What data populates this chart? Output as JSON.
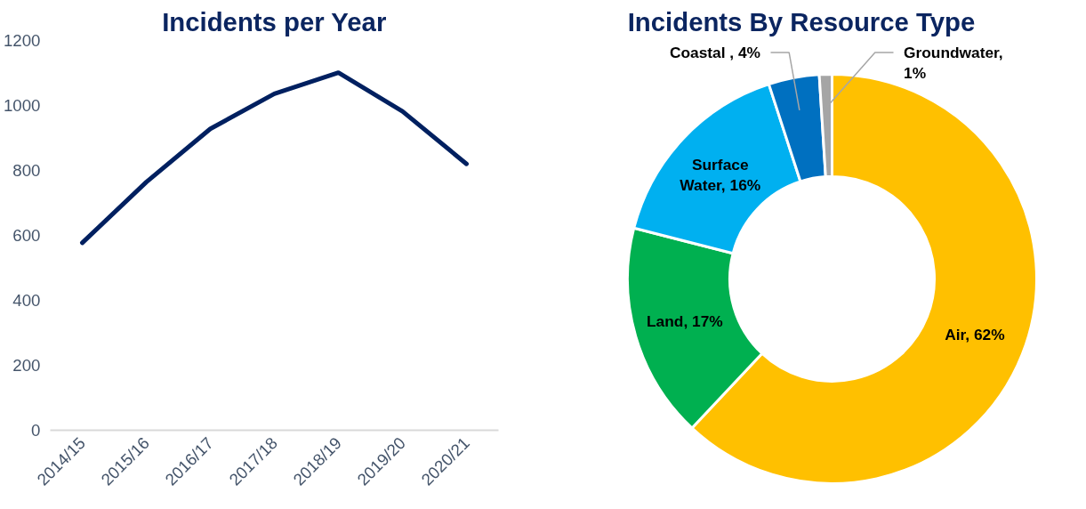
{
  "chart_data": [
    {
      "type": "line",
      "title": "Incidents per Year",
      "categories": [
        "2014/15",
        "2015/16",
        "2016/17",
        "2017/18",
        "2018/19",
        "2019/20",
        "2020/21"
      ],
      "series": [
        {
          "color": "#002060",
          "values": [
            577,
            764,
            928,
            1036,
            1101,
            982,
            820
          ]
        }
      ],
      "ylim": [
        0,
        1200
      ],
      "yticks": [
        0,
        200,
        400,
        600,
        800,
        1000,
        1200
      ],
      "grid": false,
      "marker": "none",
      "line_style": "solid"
    },
    {
      "type": "donut",
      "title": "Incidents By Resource Type",
      "categories": [
        "Air",
        "Land",
        "Surface Water",
        "Coastal ",
        "Groundwater"
      ],
      "values": [
        62,
        17,
        16,
        4,
        1
      ],
      "colors": [
        "#ffc000",
        "#00b050",
        "#00b0f0",
        "#0070c0",
        "#a5a5a5"
      ],
      "value_labels": [
        ", 62%",
        ", 17%",
        ", 16%",
        ", 4%",
        ", 1%"
      ]
    }
  ]
}
